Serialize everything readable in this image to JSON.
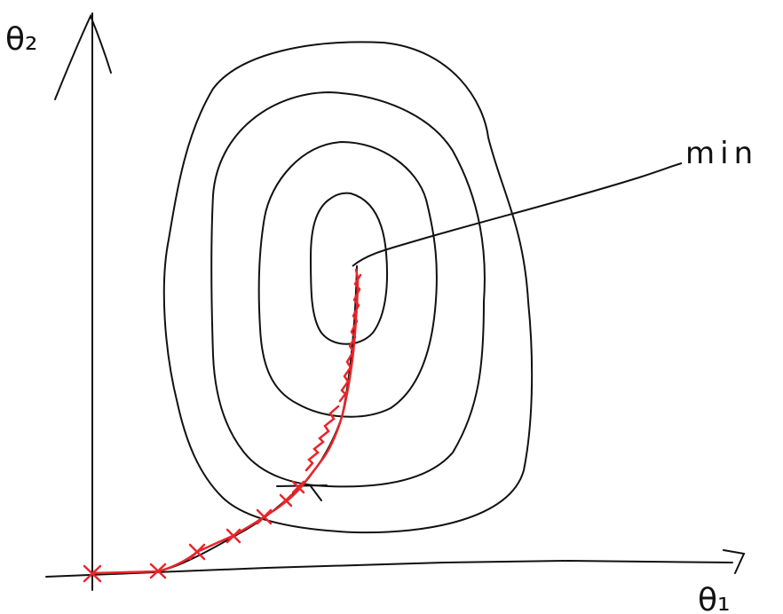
{
  "labels": {
    "theta2": "θ₂",
    "theta1": "θ₁",
    "min": "min"
  },
  "colors": {
    "ink": "#111111",
    "path": "#e8262b"
  }
}
